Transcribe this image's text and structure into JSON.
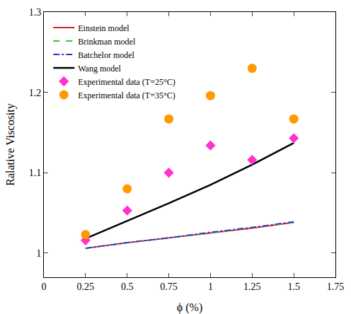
{
  "chart_data": {
    "type": "line",
    "x_label": "ϕ (%)",
    "y_label": "Ralative Viscosity",
    "x": [
      0.25,
      0.5,
      0.75,
      1,
      1.25,
      1.5
    ],
    "series": [
      {
        "name": "Einstein model",
        "type": "line",
        "color": "#d62020",
        "line_style": "solid",
        "values": [
          1.006,
          1.013,
          1.019,
          1.025,
          1.031,
          1.038
        ]
      },
      {
        "name": "Brinkman model",
        "type": "line",
        "color": "#2ecc2e",
        "line_style": "dash",
        "values": [
          1.006,
          1.013,
          1.019,
          1.025,
          1.032,
          1.038
        ]
      },
      {
        "name": "Batchelor model",
        "type": "line",
        "color": "#3030d0",
        "line_style": "dashdot",
        "values": [
          1.006,
          1.013,
          1.019,
          1.026,
          1.032,
          1.039
        ]
      },
      {
        "name": "Wang model",
        "type": "line",
        "color": "#000000",
        "line_style": "solid",
        "values": [
          1.018,
          1.04,
          1.062,
          1.085,
          1.11,
          1.137
        ]
      },
      {
        "name": "Experimental data (T=25°C)",
        "type": "scatter",
        "color": "#ff33cc",
        "marker": "diamond",
        "values": [
          1.016,
          1.053,
          1.1,
          1.134,
          1.116,
          1.143
        ]
      },
      {
        "name": "Experimental data (T=35°C)",
        "type": "scatter",
        "color": "#ff9900",
        "marker": "circle",
        "values": [
          1.023,
          1.08,
          1.167,
          1.196,
          1.23,
          1.167
        ]
      }
    ],
    "xlim": [
      0,
      1.75
    ],
    "xticks": [
      0,
      0.25,
      0.5,
      0.75,
      1,
      1.25,
      1.5,
      1.75
    ],
    "ylim": [
      0.97,
      1.3
    ],
    "yticks": [
      1,
      1.1,
      1.2,
      1.3
    ],
    "grid": false,
    "legend": "top-left"
  }
}
